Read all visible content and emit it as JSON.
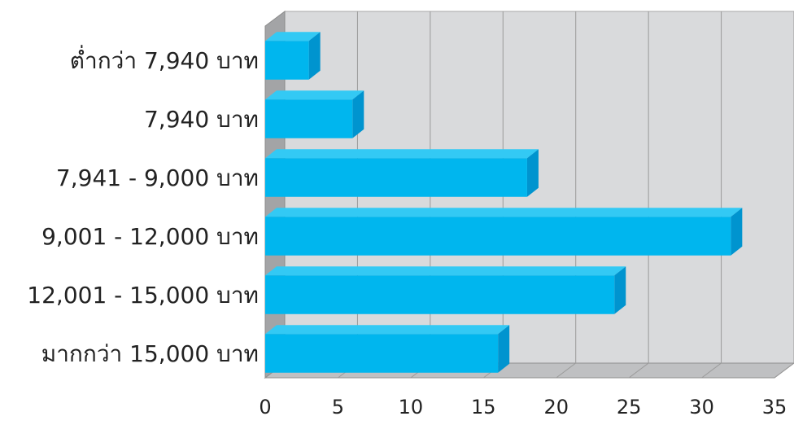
{
  "chart_data": {
    "type": "bar",
    "orientation": "horizontal",
    "style": "3d",
    "categories": [
      "ต่ำกว่า 7,940 บาท",
      "7,940 บาท",
      "7,941 - 9,000 บาท",
      "9,001 - 12,000 บาท",
      "12,001 - 15,000 บาท",
      "มากกว่า 15,000 บาท"
    ],
    "values": [
      3,
      6,
      18,
      32,
      24,
      16
    ],
    "xlim": [
      0,
      35
    ],
    "x_ticks": [
      "0",
      "5",
      "10",
      "15",
      "20",
      "25",
      "30",
      "35"
    ],
    "grid": true,
    "legend": "none",
    "colors": {
      "bar_front": "#00b6ee",
      "bar_top": "#33c9f4",
      "bar_side": "#0094cf",
      "wall": "#d9dadc",
      "floor": "#bfc0c2",
      "gridline": "#9a9a9a"
    }
  }
}
